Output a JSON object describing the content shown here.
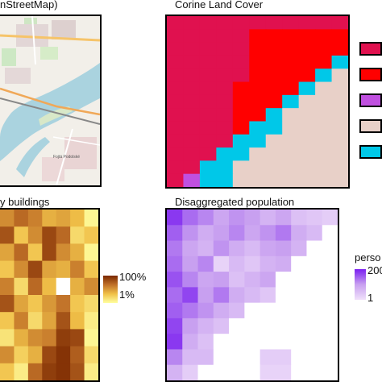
{
  "panels": {
    "osm": {
      "title": "nStreetMap)",
      "map_labels": {
        "district": "Fojtá Podolské"
      }
    },
    "clc": {
      "title": "Corine Land Cover",
      "legend_colors": [
        "#e0114f",
        "#ff0000",
        "#c050e0",
        "#e8d0c8",
        "#00c8e8"
      ]
    },
    "buildings": {
      "title": "y buildings",
      "colorbar": {
        "max_label": "100%",
        "min_label": "1%",
        "colors": [
          "#7a2800",
          "#c07028",
          "#f0c048",
          "#ffffa0"
        ]
      }
    },
    "population": {
      "title": "Disaggregated population",
      "colorbar": {
        "title": "perso",
        "max_label": "200",
        "min_label": "1",
        "colors": [
          "#7a1ef0",
          "#c8a0f0",
          "#f0e0fa"
        ]
      }
    }
  },
  "chart_data": [
    {
      "type": "heatmap",
      "title": "Corine Land Cover",
      "categories": [
        0,
        1,
        2,
        3,
        4
      ],
      "legend_colors": [
        "#e0114f",
        "#ff0000",
        "#c050e0",
        "#e8d0c8",
        "#00c8e8"
      ],
      "grid": [
        [
          0,
          0,
          0,
          0,
          0,
          0,
          0,
          0,
          0,
          0,
          0
        ],
        [
          0,
          0,
          0,
          0,
          0,
          1,
          1,
          1,
          1,
          1,
          1
        ],
        [
          0,
          0,
          0,
          0,
          0,
          1,
          1,
          1,
          1,
          1,
          1
        ],
        [
          0,
          0,
          0,
          0,
          0,
          1,
          1,
          1,
          1,
          1,
          4
        ],
        [
          0,
          0,
          0,
          0,
          0,
          1,
          1,
          1,
          1,
          4,
          3
        ],
        [
          0,
          0,
          0,
          0,
          1,
          1,
          1,
          1,
          4,
          3,
          3
        ],
        [
          0,
          0,
          0,
          0,
          1,
          1,
          1,
          4,
          3,
          3,
          3
        ],
        [
          0,
          0,
          0,
          0,
          1,
          1,
          4,
          3,
          3,
          3,
          3
        ],
        [
          0,
          0,
          0,
          0,
          1,
          4,
          4,
          3,
          3,
          3,
          3
        ],
        [
          0,
          0,
          0,
          0,
          4,
          4,
          3,
          3,
          3,
          3,
          3
        ],
        [
          0,
          0,
          0,
          4,
          4,
          3,
          3,
          3,
          3,
          3,
          3
        ],
        [
          0,
          0,
          4,
          4,
          3,
          3,
          3,
          3,
          3,
          3,
          3
        ],
        [
          0,
          2,
          4,
          4,
          3,
          3,
          3,
          3,
          3,
          3,
          3
        ]
      ]
    },
    {
      "type": "heatmap",
      "title": "y buildings",
      "colorbar": {
        "min": "1%",
        "max": "100%"
      },
      "grid": [
        [
          0.55,
          0.7,
          0.6,
          0.4,
          0.45,
          0.35,
          0.05
        ],
        [
          0.8,
          0.3,
          0.55,
          0.85,
          0.7,
          0.2,
          0.3
        ],
        [
          0.45,
          0.7,
          0.3,
          0.85,
          0.55,
          0.4,
          0.05
        ],
        [
          0.3,
          0.55,
          0.85,
          0.45,
          0.4,
          0.6,
          0.3
        ],
        [
          0.6,
          0.2,
          0.7,
          0.35,
          0.0,
          0.4,
          0.55
        ],
        [
          0.8,
          0.45,
          0.3,
          0.5,
          0.65,
          0.3,
          0.2
        ],
        [
          0.3,
          0.6,
          0.2,
          0.45,
          0.8,
          0.35,
          0.1
        ],
        [
          0.15,
          0.4,
          0.55,
          0.6,
          0.9,
          0.85,
          0.05
        ],
        [
          0.55,
          0.25,
          0.4,
          0.85,
          0.95,
          0.75,
          0.2
        ],
        [
          0.3,
          0.1,
          0.7,
          0.9,
          0.95,
          0.8,
          0.1
        ]
      ]
    },
    {
      "type": "heatmap",
      "title": "Disaggregated population",
      "colorbar": {
        "title": "perso",
        "min": 1,
        "max": 200
      },
      "grid": [
        [
          0.9,
          0.7,
          0.6,
          0.45,
          0.55,
          0.5,
          0.35,
          0.45,
          0.25,
          0.2,
          0.15
        ],
        [
          0.75,
          0.55,
          0.4,
          0.5,
          0.6,
          0.45,
          0.55,
          0.65,
          0.4,
          0.3,
          null
        ],
        [
          0.65,
          0.45,
          0.35,
          0.55,
          0.4,
          0.3,
          0.45,
          0.5,
          0.35,
          null,
          null
        ],
        [
          0.7,
          0.5,
          0.6,
          0.1,
          0.3,
          0.2,
          0.35,
          0.4,
          null,
          null,
          null
        ],
        [
          0.8,
          0.6,
          0.45,
          0.5,
          0.25,
          0.35,
          0.45,
          null,
          null,
          null,
          null
        ],
        [
          0.7,
          0.85,
          0.5,
          0.65,
          0.4,
          0.3,
          0.2,
          null,
          null,
          null,
          null
        ],
        [
          0.75,
          0.65,
          0.55,
          0.4,
          0.3,
          null,
          null,
          null,
          null,
          null,
          null
        ],
        [
          0.85,
          0.5,
          0.35,
          0.25,
          null,
          null,
          null,
          null,
          null,
          null,
          null
        ],
        [
          0.9,
          0.4,
          0.25,
          null,
          null,
          null,
          null,
          null,
          null,
          null,
          null
        ],
        [
          0.6,
          0.3,
          0.3,
          null,
          null,
          null,
          0.15,
          0.15,
          null,
          null,
          null
        ],
        [
          0.35,
          0.15,
          null,
          null,
          null,
          null,
          0.1,
          0.1,
          null,
          null,
          null
        ]
      ]
    }
  ]
}
